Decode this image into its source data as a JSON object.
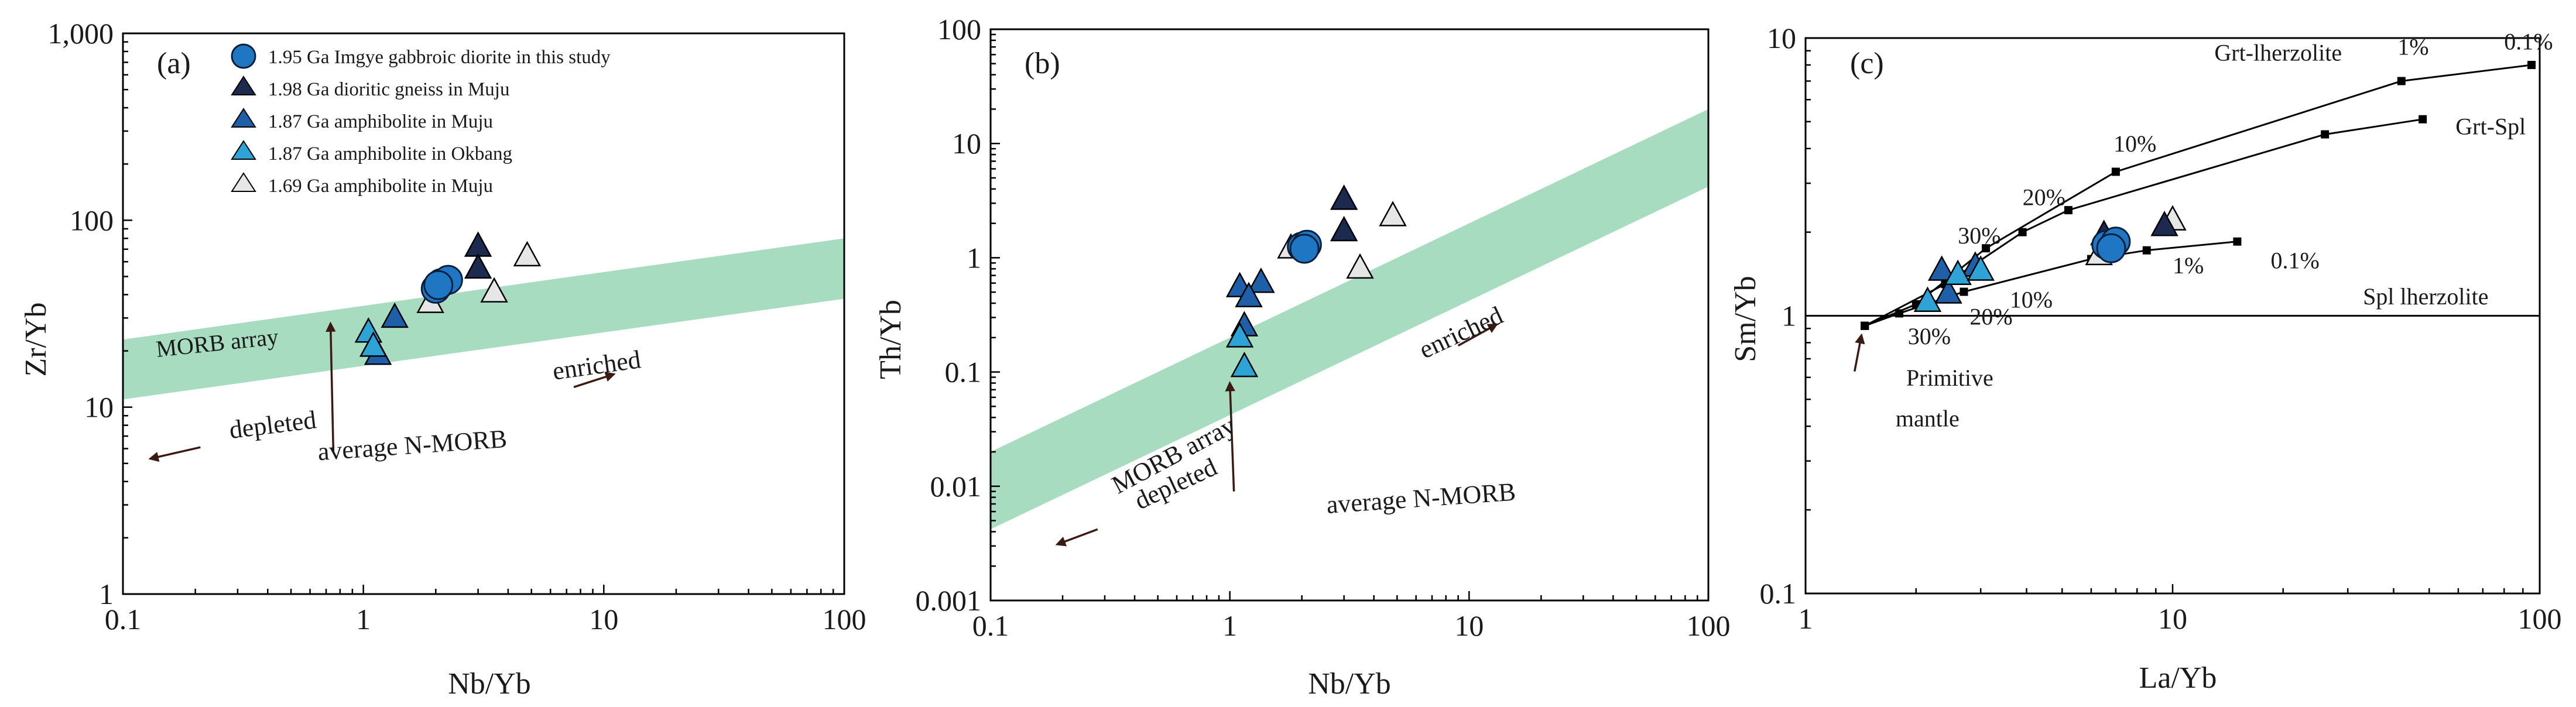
{
  "colors": {
    "band": "#a8dcc0",
    "study": "#1f77c4",
    "gneiss": "#1b2a4e",
    "amph_muju_187": "#1f5fa8",
    "amph_okbang": "#2ea3d6",
    "amph_169": "#e6e6e6",
    "arrow": "#3a1a12",
    "axis": "#000000"
  },
  "legend": [
    {
      "key": "study",
      "marker": "circle",
      "label": "1.95 Ga Imgye gabbroic diorite in this study"
    },
    {
      "key": "gneiss",
      "marker": "triangle",
      "label": "1.98 Ga dioritic gneiss in Muju"
    },
    {
      "key": "amph_muju_187",
      "marker": "triangle",
      "label": "1.87 Ga amphibolite in Muju"
    },
    {
      "key": "amph_okbang",
      "marker": "triangle",
      "label": "1.87 Ga amphibolite in Okbang"
    },
    {
      "key": "amph_169",
      "marker": "triangle",
      "label": "1.69 Ga amphibolite in Muju"
    }
  ],
  "chart_data": [
    {
      "type": "scatter",
      "panel": "(a)",
      "xlabel": "Nb/Yb",
      "ylabel": "Zr/Yb",
      "xscale": "log",
      "yscale": "log",
      "xlim": [
        0.1,
        100
      ],
      "ylim": [
        1,
        1000
      ],
      "xticks": [
        {
          "v": 0.1,
          "label": "0.1"
        },
        {
          "v": 1,
          "label": "1"
        },
        {
          "v": 10,
          "label": "10"
        },
        {
          "v": 100,
          "label": "100"
        }
      ],
      "yticks": [
        {
          "v": 1,
          "label": "1"
        },
        {
          "v": 10,
          "label": "10"
        },
        {
          "v": 100,
          "label": "100"
        },
        {
          "v": 1000,
          "label": "1,000"
        }
      ],
      "band": {
        "label": "MORB array",
        "upper": [
          [
            0.1,
            23
          ],
          [
            100,
            80
          ]
        ],
        "lower": [
          [
            0.1,
            11
          ],
          [
            100,
            38
          ]
        ]
      },
      "series": [
        {
          "key": "amph_169",
          "points": [
            [
              1.9,
              36
            ],
            [
              3.5,
              41
            ],
            [
              4.8,
              64
            ]
          ]
        },
        {
          "key": "gneiss",
          "points": [
            [
              3.0,
              72
            ],
            [
              3.0,
              55
            ]
          ]
        },
        {
          "key": "amph_muju_187",
          "points": [
            [
              1.15,
              19
            ],
            [
              1.35,
              30
            ]
          ]
        },
        {
          "key": "amph_okbang",
          "points": [
            [
              1.05,
              25
            ],
            [
              1.1,
              21
            ]
          ]
        },
        {
          "key": "study",
          "points": [
            [
              2.0,
              43
            ],
            [
              2.1,
              46
            ],
            [
              2.25,
              48
            ],
            [
              2.05,
              45
            ]
          ]
        }
      ],
      "annotations": [
        {
          "text": "depleted",
          "x": 0.28,
          "y": 6.8,
          "angle": -7
        },
        {
          "text": "enriched",
          "x": 6.2,
          "y": 14,
          "angle": -8
        },
        {
          "text": "average N-MORB",
          "x": 0.65,
          "y": 5.2,
          "angle": -4
        }
      ],
      "arrows": [
        {
          "from": [
            0.21,
            6.1
          ],
          "to": [
            0.13,
            5.3
          ]
        },
        {
          "from": [
            7.5,
            12.8
          ],
          "to": [
            11,
            15
          ]
        },
        {
          "from": [
            0.75,
            5.8
          ],
          "to": [
            0.73,
            28
          ]
        }
      ]
    },
    {
      "type": "scatter",
      "panel": "(b)",
      "xlabel": "Nb/Yb",
      "ylabel": "Th/Yb",
      "xscale": "log",
      "yscale": "log",
      "xlim": [
        0.1,
        100
      ],
      "ylim": [
        0.001,
        100
      ],
      "xticks": [
        {
          "v": 0.1,
          "label": "0.1"
        },
        {
          "v": 1,
          "label": "1"
        },
        {
          "v": 10,
          "label": "10"
        },
        {
          "v": 100,
          "label": "100"
        }
      ],
      "yticks": [
        {
          "v": 0.001,
          "label": "0.001"
        },
        {
          "v": 0.01,
          "label": "0.01"
        },
        {
          "v": 0.1,
          "label": "0.1"
        },
        {
          "v": 1,
          "label": "1"
        },
        {
          "v": 10,
          "label": "10"
        },
        {
          "v": 100,
          "label": "100"
        }
      ],
      "band": {
        "label": "MORB array",
        "upper": [
          [
            0.1,
            0.02
          ],
          [
            100,
            20
          ]
        ],
        "lower": [
          [
            0.1,
            0.0042
          ],
          [
            100,
            4.2
          ]
        ]
      },
      "series": [
        {
          "key": "amph_169",
          "points": [
            [
              1.8,
              1.2
            ],
            [
              3.5,
              0.8
            ],
            [
              4.8,
              2.3
            ]
          ]
        },
        {
          "key": "gneiss",
          "points": [
            [
              3.0,
              3.2
            ],
            [
              3.0,
              1.7
            ]
          ]
        },
        {
          "key": "amph_muju_187",
          "points": [
            [
              1.1,
              0.55
            ],
            [
              1.35,
              0.6
            ],
            [
              1.2,
              0.45
            ],
            [
              1.15,
              0.25
            ]
          ]
        },
        {
          "key": "amph_okbang",
          "points": [
            [
              1.1,
              0.2
            ],
            [
              1.15,
              0.11
            ]
          ]
        },
        {
          "key": "study",
          "points": [
            [
              2.0,
              1.25
            ],
            [
              2.1,
              1.3
            ],
            [
              2.05,
              1.2
            ]
          ]
        }
      ],
      "annotations": [
        {
          "text": "MORB array",
          "x": 0.34,
          "y": 0.0085,
          "angle": -28
        },
        {
          "text": "depleted",
          "x": 0.42,
          "y": 0.0062,
          "angle": -25
        },
        {
          "text": "enriched",
          "x": 6.5,
          "y": 0.13,
          "angle": -25
        },
        {
          "text": "average N-MORB",
          "x": 2.55,
          "y": 0.0058,
          "angle": -4
        }
      ],
      "arrows": [
        {
          "from": [
            0.28,
            0.0042
          ],
          "to": [
            0.19,
            0.0031
          ]
        },
        {
          "from": [
            9,
            0.17
          ],
          "to": [
            13,
            0.26
          ]
        },
        {
          "from": [
            1.04,
            0.009
          ],
          "to": [
            1.0,
            0.08
          ]
        }
      ]
    },
    {
      "type": "line",
      "panel": "(c)",
      "xlabel": "La/Yb",
      "ylabel": "Sm/Yb",
      "xscale": "log",
      "yscale": "log",
      "xlim": [
        1,
        100
      ],
      "ylim": [
        0.1,
        10
      ],
      "xticks": [
        {
          "v": 1,
          "label": "1"
        },
        {
          "v": 10,
          "label": "10"
        },
        {
          "v": 100,
          "label": "100"
        }
      ],
      "yticks": [
        {
          "v": 0.1,
          "label": "0.1"
        },
        {
          "v": 1,
          "label": "1"
        },
        {
          "v": 10,
          "label": "10"
        }
      ],
      "hline": 1,
      "curves": [
        {
          "name": "Grt-lherzolite",
          "points": [
            [
              1.45,
              0.92
            ],
            [
              2.0,
              1.1
            ],
            [
              3.1,
              1.75
            ],
            [
              7.0,
              3.3
            ],
            [
              42,
              7.0
            ],
            [
              95,
              8.0
            ]
          ]
        },
        {
          "name": "Grt-Spl",
          "points": [
            [
              1.45,
              0.92
            ],
            [
              2.4,
              1.3
            ],
            [
              3.9,
              2.0
            ],
            [
              5.2,
              2.4
            ],
            [
              26,
              4.5
            ],
            [
              48,
              5.1
            ]
          ]
        },
        {
          "name": "Spl lherzolite",
          "points": [
            [
              1.45,
              0.92
            ],
            [
              1.8,
              1.02
            ],
            [
              2.7,
              1.22
            ],
            [
              6.0,
              1.6
            ],
            [
              8.5,
              1.72
            ],
            [
              15,
              1.85
            ]
          ]
        }
      ],
      "series": [
        {
          "key": "amph_169",
          "points": [
            [
              6.3,
              1.65
            ],
            [
              10.0,
              2.2
            ]
          ]
        },
        {
          "key": "gneiss",
          "points": [
            [
              6.5,
              1.95
            ],
            [
              9.5,
              2.1
            ]
          ]
        },
        {
          "key": "amph_muju_187",
          "points": [
            [
              2.35,
              1.45
            ],
            [
              2.45,
              1.2
            ],
            [
              2.9,
              1.5
            ]
          ]
        },
        {
          "key": "amph_okbang",
          "points": [
            [
              2.15,
              1.12
            ],
            [
              2.6,
              1.4
            ],
            [
              3.0,
              1.45
            ]
          ]
        },
        {
          "key": "study",
          "points": [
            [
              6.6,
              1.8
            ],
            [
              7.0,
              1.85
            ],
            [
              6.8,
              1.75
            ]
          ]
        }
      ],
      "annotations": [
        {
          "text": "Grt-lherzolite",
          "x": 13,
          "y": 8.3
        },
        {
          "text": "Grt-Spl",
          "x": 59,
          "y": 4.5
        },
        {
          "text": "Spl lherzolite",
          "x": 33,
          "y": 1.1
        },
        {
          "text": "1%",
          "x": 41,
          "y": 8.7
        },
        {
          "text": "0.1%",
          "x": 80,
          "y": 9.1
        },
        {
          "text": "10%",
          "x": 6.9,
          "y": 3.9
        },
        {
          "text": "20%",
          "x": 3.9,
          "y": 2.5
        },
        {
          "text": "30%",
          "x": 2.6,
          "y": 1.82
        },
        {
          "text": "30%",
          "x": 1.9,
          "y": 0.79
        },
        {
          "text": "20%",
          "x": 2.8,
          "y": 0.93
        },
        {
          "text": "10%",
          "x": 3.6,
          "y": 1.07
        },
        {
          "text": "1%",
          "x": 10.0,
          "y": 1.42
        },
        {
          "text": "0.1%",
          "x": 18.5,
          "y": 1.48
        },
        {
          "text": "Primitive",
          "x": 1.88,
          "y": 0.56
        },
        {
          "text": "mantle",
          "x": 1.76,
          "y": 0.4
        }
      ],
      "arrows": [
        {
          "from": [
            1.36,
            0.63
          ],
          "to": [
            1.42,
            0.85
          ]
        }
      ]
    }
  ]
}
